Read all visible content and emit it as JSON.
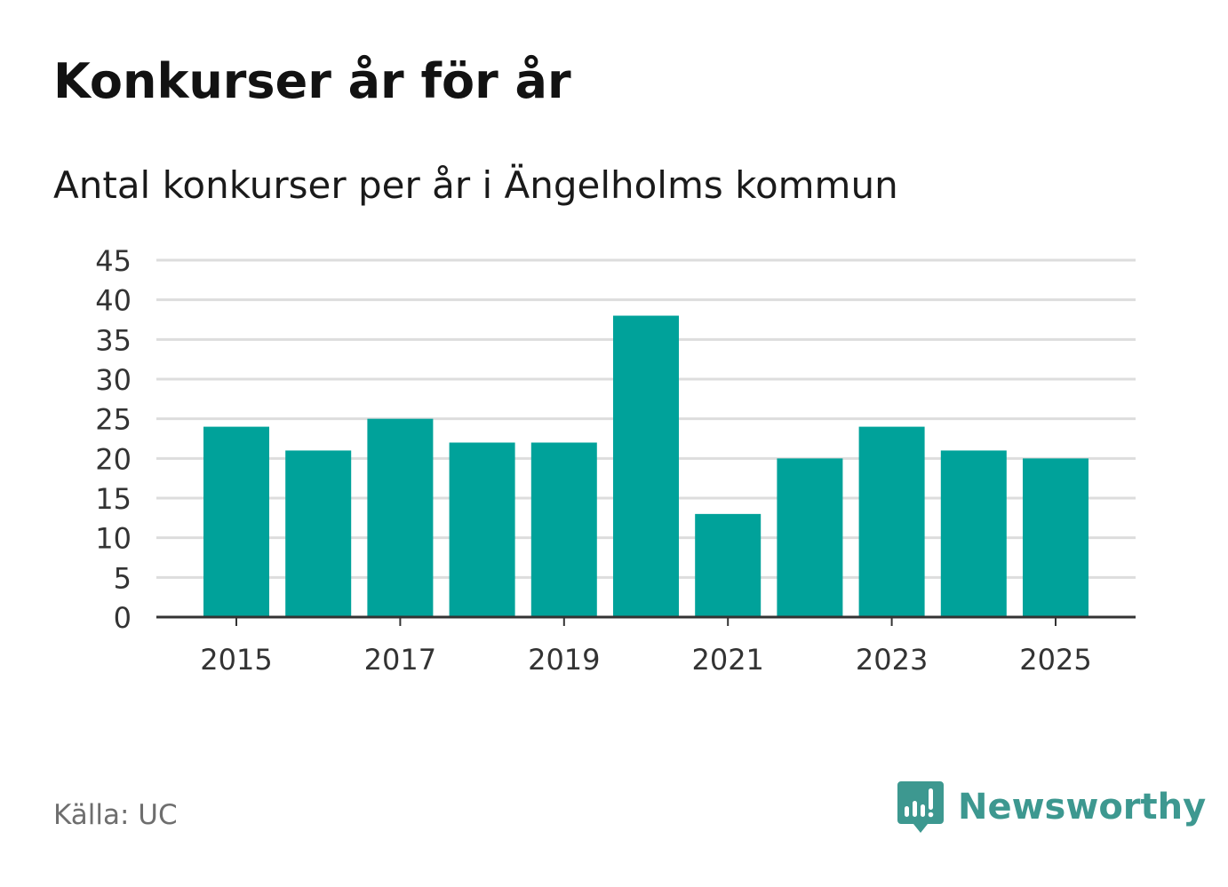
{
  "title": "Konkurser år för år",
  "subtitle": "Antal konkurser per år i Ängelholms kommun",
  "source": "Källa: UC",
  "brand": {
    "name": "Newsworthy",
    "logo_icon": "bar-chart-speech-bubble-icon",
    "color": "#3d9890"
  },
  "colors": {
    "bar": "#00a29a",
    "grid": "#dddddd",
    "axis": "#333333",
    "tick_text": "#333333"
  },
  "chart_data": {
    "type": "bar",
    "categories": [
      "2015",
      "2016",
      "2017",
      "2018",
      "2019",
      "2020",
      "2021",
      "2022",
      "2023",
      "2024",
      "2025"
    ],
    "values": [
      24,
      21,
      25,
      22,
      22,
      38,
      13,
      20,
      24,
      21,
      20
    ],
    "x_tick_labels": [
      "2015",
      "2017",
      "2019",
      "2021",
      "2023",
      "2025"
    ],
    "y_ticks": [
      0,
      5,
      10,
      15,
      20,
      25,
      30,
      35,
      40,
      45
    ],
    "ylim": [
      0,
      45
    ],
    "grid": true,
    "legend": "none"
  }
}
